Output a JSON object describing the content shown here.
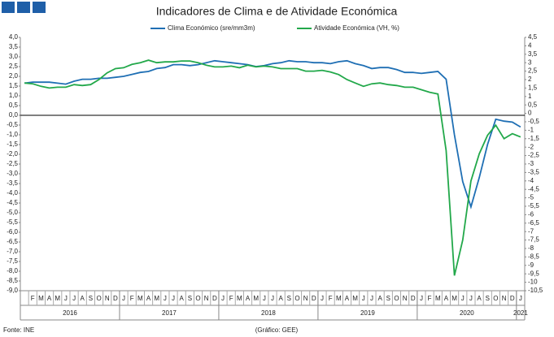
{
  "chart_data": {
    "type": "line",
    "title": "Indicadores de Clima e de Atividade Económica",
    "source": "Fonte: INE",
    "credit": "(Gráfico: GEE)",
    "categories": [
      null,
      "F",
      "M",
      "A",
      "M",
      "J",
      "J",
      "A",
      "S",
      "O",
      "N",
      "D",
      "J",
      "F",
      "M",
      "A",
      "M",
      "J",
      "J",
      "A",
      "S",
      "O",
      "N",
      "D",
      "J",
      "F",
      "M",
      "A",
      "M",
      "J",
      "J",
      "A",
      "S",
      "O",
      "N",
      "D",
      "J",
      "F",
      "M",
      "A",
      "M",
      "J",
      "J",
      "A",
      "S",
      "O",
      "N",
      "D",
      "J",
      "F",
      "M",
      "A",
      "M",
      "J",
      "J",
      "A",
      "S",
      "O",
      "N",
      "D",
      "J"
    ],
    "year_labels": [
      "2016",
      "2017",
      "2018",
      "2019",
      "2020",
      "2021"
    ],
    "series": [
      {
        "name": "Clima Económico (sre/mm3m)",
        "color": "#1f6fb4",
        "values": [
          1.65,
          1.7,
          1.7,
          1.7,
          1.65,
          1.6,
          1.75,
          1.85,
          1.85,
          1.9,
          1.9,
          1.95,
          2.0,
          2.1,
          2.2,
          2.25,
          2.4,
          2.45,
          2.6,
          2.6,
          2.55,
          2.6,
          2.7,
          2.8,
          2.75,
          2.7,
          2.65,
          2.6,
          2.5,
          2.55,
          2.65,
          2.7,
          2.8,
          2.75,
          2.75,
          2.7,
          2.7,
          2.65,
          2.75,
          2.8,
          2.65,
          2.55,
          2.4,
          2.45,
          2.45,
          2.35,
          2.2,
          2.2,
          2.15,
          2.2,
          2.25,
          1.85,
          -1.0,
          -3.4,
          -4.7,
          -3.2,
          -1.5,
          -0.2,
          -0.3,
          -0.35,
          -0.6
        ]
      },
      {
        "name": "Atividade Económica (VH, %)",
        "color": "#22a84a",
        "axis": "y2",
        "values": [
          1.8,
          1.75,
          1.6,
          1.5,
          1.55,
          1.55,
          1.7,
          1.65,
          1.7,
          2.0,
          2.4,
          2.65,
          2.7,
          2.9,
          3.0,
          3.15,
          3.0,
          3.05,
          3.05,
          3.1,
          3.1,
          3.0,
          2.85,
          2.75,
          2.75,
          2.8,
          2.7,
          2.85,
          2.75,
          2.8,
          2.75,
          2.65,
          2.65,
          2.65,
          2.5,
          2.5,
          2.55,
          2.45,
          2.3,
          2.0,
          1.8,
          1.6,
          1.75,
          1.8,
          1.7,
          1.65,
          1.55,
          1.55,
          1.4,
          1.25,
          1.15,
          -2.2,
          -9.6,
          -7.5,
          -4.0,
          -2.4,
          -1.3,
          -0.7,
          -1.5,
          -1.2,
          -1.4
        ]
      }
    ],
    "ylim": [
      -9,
      4
    ],
    "yticks": [
      {
        "value": 4,
        "label": "4,0"
      },
      {
        "value": 3.5,
        "label": "3,5"
      },
      {
        "value": 3,
        "label": "3,0"
      },
      {
        "value": 2.5,
        "label": "2,5"
      },
      {
        "value": 2,
        "label": "2,0"
      },
      {
        "value": 1.5,
        "label": "1,5"
      },
      {
        "value": 1,
        "label": "1,0"
      },
      {
        "value": 0.5,
        "label": "0,5"
      },
      {
        "value": 0,
        "label": "0,0"
      },
      {
        "value": -0.5,
        "label": "-0,5"
      },
      {
        "value": -1,
        "label": "-1,0"
      },
      {
        "value": -1.5,
        "label": "-1,5"
      },
      {
        "value": -2,
        "label": "-2,0"
      },
      {
        "value": -2.5,
        "label": "-2,5"
      },
      {
        "value": -3,
        "label": "-3,0"
      },
      {
        "value": -3.5,
        "label": "-3,5"
      },
      {
        "value": -4,
        "label": "-4,0"
      },
      {
        "value": -4.5,
        "label": "-4,5"
      },
      {
        "value": -5,
        "label": "-5,0"
      },
      {
        "value": -5.5,
        "label": "-5,5"
      },
      {
        "value": -6,
        "label": "-6,0"
      },
      {
        "value": -6.5,
        "label": "-6,5"
      },
      {
        "value": -7,
        "label": "-7,0"
      },
      {
        "value": -7.5,
        "label": "-7,5"
      },
      {
        "value": -8,
        "label": "-8,0"
      },
      {
        "value": -8.5,
        "label": "-8,5"
      },
      {
        "value": -9,
        "label": "-9,0"
      }
    ],
    "y2lim": [
      -10.5,
      4.5
    ],
    "y2ticks": [
      {
        "value": 4.5,
        "label": "4,5"
      },
      4,
      {
        "value": 3.5,
        "label": "3,5"
      },
      3,
      {
        "value": 2.5,
        "label": "2,5"
      },
      2,
      {
        "value": 1.5,
        "label": "1,5"
      },
      1,
      {
        "value": 0.5,
        "label": "0,5"
      },
      0,
      {
        "value": -0.5,
        "label": "-0,5"
      },
      -1,
      {
        "value": -1.5,
        "label": "-1,5"
      },
      -2,
      {
        "value": -2.5,
        "label": "-2,5"
      },
      -3,
      {
        "value": -3.5,
        "label": "-3,5"
      },
      -4,
      {
        "value": -4.5,
        "label": "-4,5"
      },
      -5,
      {
        "value": -5.5,
        "label": "-5,5"
      },
      -6,
      {
        "value": -6.5,
        "label": "-6,5"
      },
      -7,
      {
        "value": -7.5,
        "label": "-7,5"
      },
      -8,
      {
        "value": -8.5,
        "label": "-8,5"
      },
      -9,
      {
        "value": -9.5,
        "label": "-9,5"
      },
      -10,
      {
        "value": -10.5,
        "label": "-10,5"
      }
    ],
    "legend": "top",
    "grid": false
  }
}
